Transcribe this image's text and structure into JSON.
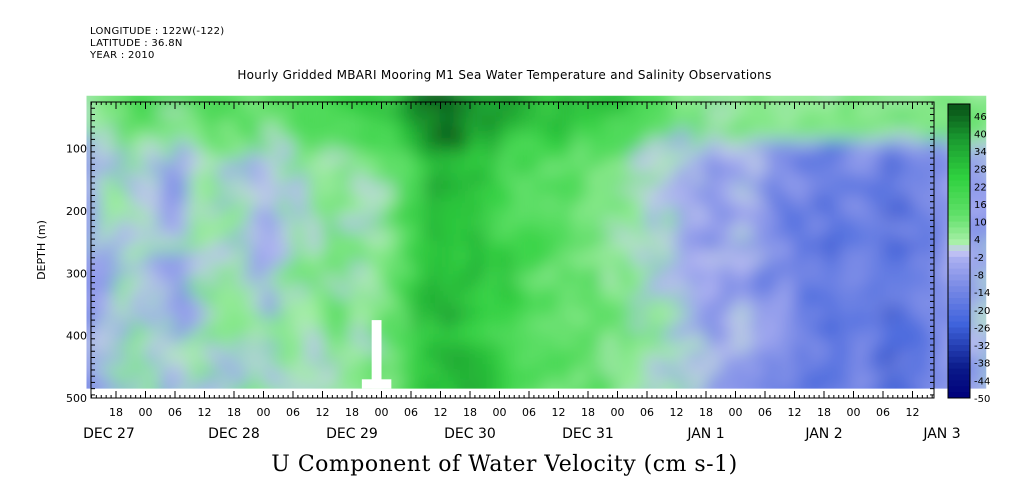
{
  "header": {
    "longitude": "LONGITUDE : 122W(-122)",
    "latitude": "LATITUDE : 36.8N",
    "year": "YEAR : 2010"
  },
  "colors": {
    "strong_negative": "#0a1a8a",
    "negative": "#3f63dc",
    "weak_negative": "#a8aef0",
    "weak_positive": "#a8f0a8",
    "positive": "#2fd13f",
    "strong_positive": "#0a5a1a"
  },
  "chart_data": {
    "type": "heatmap",
    "title": "Hourly Gridded MBARI Mooring M1 Sea Water Temperature and Salinity Observations",
    "xlabel": "U Component of Water Velocity (cm s-1)",
    "ylabel": "DEPTH (m)",
    "y_ticks": [
      100,
      200,
      300,
      400,
      500
    ],
    "y_tick_labels": [
      "100",
      "200",
      "300",
      "400",
      "500"
    ],
    "ylim": [
      500,
      0
    ],
    "y_inverted": true,
    "x_hour_ticks": [
      "18",
      "00",
      "06",
      "12",
      "18",
      "00",
      "06",
      "12",
      "18",
      "00",
      "06",
      "12",
      "18",
      "00",
      "06",
      "12",
      "18",
      "00",
      "06",
      "12",
      "18",
      "00",
      "06",
      "12",
      "18",
      "00",
      "06",
      "12",
      "18",
      "00",
      "06",
      "12",
      "18",
      "00",
      "06",
      "12",
      "18",
      "00",
      "06",
      "12",
      "18",
      "00",
      "06",
      "12"
    ],
    "x_day_labels": [
      {
        "label": "DEC 27",
        "hour_offset": -6
      },
      {
        "label": "DEC 28",
        "hour_offset": 18
      },
      {
        "label": "DEC 29",
        "hour_offset": 42
      },
      {
        "label": "DEC 30",
        "hour_offset": 66
      },
      {
        "label": "DEC 31",
        "hour_offset": 90
      },
      {
        "label": "JAN  1",
        "hour_offset": 114
      },
      {
        "label": "JAN  2",
        "hour_offset": 138
      },
      {
        "label": "JAN  3",
        "hour_offset": 162
      }
    ],
    "colorbar": {
      "labels": [
        "46",
        "40",
        "34",
        "28",
        "22",
        "16",
        "10",
        "4",
        "-2",
        "-8",
        "-14",
        "-20",
        "-26",
        "-32",
        "-38",
        "-44",
        "-50"
      ]
    },
    "data_extent": {
      "start_hour": -12,
      "end_hour": 171,
      "min_depth": 15,
      "max_depth": 485
    },
    "velocity_profile_by_hour": [
      {
        "hour": -12,
        "u": -6
      },
      {
        "hour": -6,
        "u": 2
      },
      {
        "hour": 0,
        "u": 0
      },
      {
        "hour": 6,
        "u": -4
      },
      {
        "hour": 12,
        "u": 4
      },
      {
        "hour": 18,
        "u": 2
      },
      {
        "hour": 24,
        "u": 0
      },
      {
        "hour": 30,
        "u": 4
      },
      {
        "hour": 36,
        "u": 8
      },
      {
        "hour": 42,
        "u": 6
      },
      {
        "hour": 48,
        "u": 10
      },
      {
        "hour": 54,
        "u": 26
      },
      {
        "hour": 60,
        "u": 32
      },
      {
        "hour": 66,
        "u": 28
      },
      {
        "hour": 72,
        "u": 22
      },
      {
        "hour": 78,
        "u": 16
      },
      {
        "hour": 84,
        "u": 14
      },
      {
        "hour": 90,
        "u": 12
      },
      {
        "hour": 96,
        "u": 8
      },
      {
        "hour": 102,
        "u": 2
      },
      {
        "hour": 108,
        "u": -4
      },
      {
        "hour": 114,
        "u": -8
      },
      {
        "hour": 120,
        "u": -6
      },
      {
        "hour": 126,
        "u": -10
      },
      {
        "hour": 132,
        "u": -16
      },
      {
        "hour": 138,
        "u": -20
      },
      {
        "hour": 144,
        "u": -14
      },
      {
        "hour": 150,
        "u": -22
      },
      {
        "hour": 156,
        "u": -16
      },
      {
        "hour": 162,
        "u": -10
      },
      {
        "hour": 168,
        "u": -6
      },
      {
        "hour": 171,
        "u": -4
      }
    ]
  }
}
